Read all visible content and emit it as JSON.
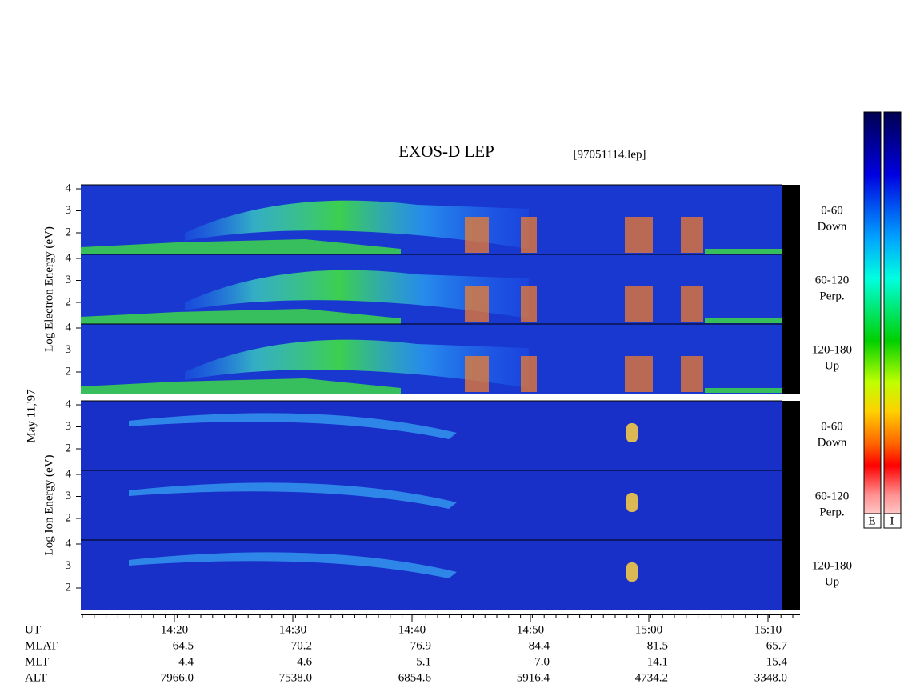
{
  "title": "EXOS-D LEP",
  "file": "[97051114.lep]",
  "date": "May 11,'97",
  "energy_ticks": [
    4,
    3,
    2
  ],
  "groups": [
    {
      "label": "Log Electron Energy (eV)",
      "panels": [
        {
          "range": "0-60",
          "dir": "Down"
        },
        {
          "range": "60-120",
          "dir": "Perp."
        },
        {
          "range": "120-180",
          "dir": "Up"
        }
      ]
    },
    {
      "label": "Log Ion Energy (eV)",
      "panels": [
        {
          "range": "0-60",
          "dir": "Down"
        },
        {
          "range": "60-120",
          "dir": "Perp."
        },
        {
          "range": "120-180",
          "dir": "Up"
        }
      ]
    }
  ],
  "rows": [
    {
      "label": "UT",
      "values": [
        "14:20",
        "14:30",
        "14:40",
        "14:50",
        "15:00",
        "15:10"
      ]
    },
    {
      "label": "MLAT",
      "values": [
        "64.5",
        "70.2",
        "76.9",
        "84.4",
        "81.5",
        "65.7"
      ]
    },
    {
      "label": "MLT",
      "values": [
        "4.4",
        "4.6",
        "5.1",
        "7.0",
        "14.1",
        "15.4"
      ]
    },
    {
      "label": "ALT",
      "values": [
        "7966.0",
        "7538.0",
        "6854.6",
        "5916.4",
        "4734.2",
        "3348.0"
      ]
    }
  ],
  "colorbars": [
    "E",
    "I"
  ]
}
